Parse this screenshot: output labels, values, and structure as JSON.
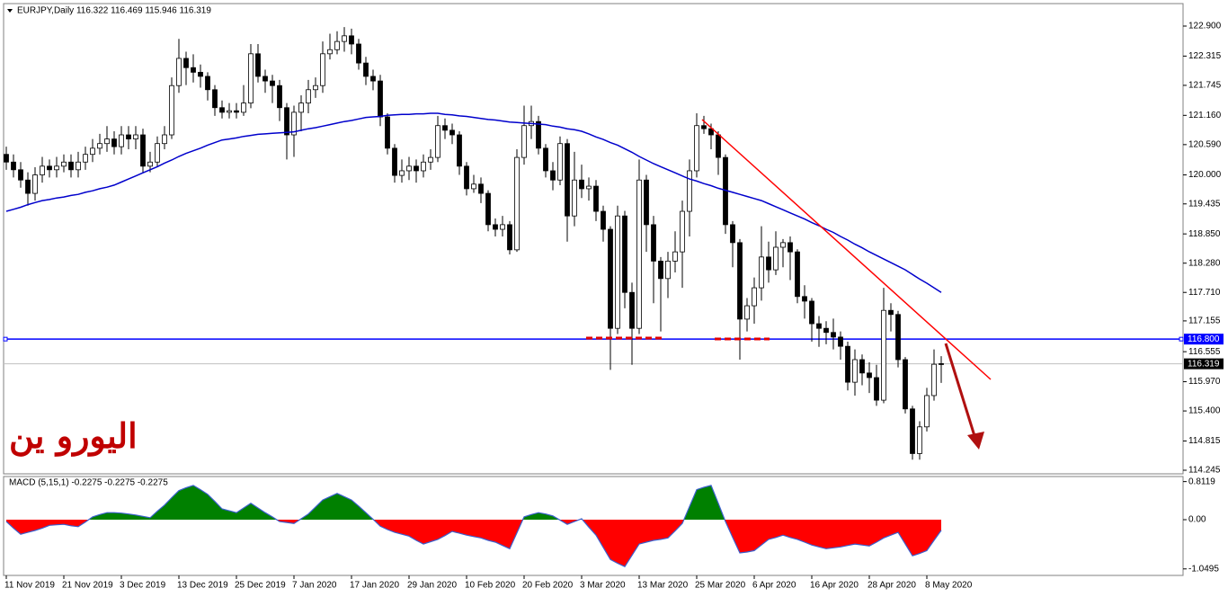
{
  "chart_data": [
    {
      "type": "candlestick",
      "header": "EURJPY,Daily  116.322 116.469 115.946 116.319",
      "annotation": "اليورو ين",
      "categories": [
        "11 Nov 2019",
        null,
        null,
        null,
        null,
        null,
        null,
        null,
        "21 Nov 2019",
        null,
        null,
        null,
        null,
        null,
        null,
        null,
        "3 Dec 2019",
        null,
        null,
        null,
        null,
        null,
        null,
        null,
        "13 Dec 2019",
        null,
        null,
        null,
        null,
        null,
        null,
        null,
        "25 Dec 2019",
        null,
        null,
        null,
        null,
        null,
        null,
        null,
        "7 Jan 2020",
        null,
        null,
        null,
        null,
        null,
        null,
        null,
        "17 Jan 2020",
        null,
        null,
        null,
        null,
        null,
        null,
        null,
        "29 Jan 2020",
        null,
        null,
        null,
        null,
        null,
        null,
        null,
        "10 Feb 2020",
        null,
        null,
        null,
        null,
        null,
        null,
        null,
        "20 Feb 2020",
        null,
        null,
        null,
        null,
        null,
        null,
        null,
        "3 Mar 2020",
        null,
        null,
        null,
        null,
        null,
        null,
        null,
        "13 Mar 2020",
        null,
        null,
        null,
        null,
        null,
        null,
        null,
        "25 Mar 2020",
        null,
        null,
        null,
        null,
        null,
        null,
        null,
        "6 Apr 2020",
        null,
        null,
        null,
        null,
        null,
        null,
        null,
        "16 Apr 2020",
        null,
        null,
        null,
        null,
        null,
        null,
        null,
        "28 Apr 2020",
        null,
        null,
        null,
        null,
        null,
        null,
        null,
        "8 May 2020",
        null,
        null
      ],
      "open": [
        120.4,
        120.25,
        120.1,
        119.9,
        119.64,
        120.0,
        120.17,
        120.1,
        120.17,
        120.25,
        120.1,
        120.25,
        120.4,
        120.52,
        120.61,
        120.7,
        120.55,
        120.78,
        120.7,
        120.78,
        120.17,
        120.25,
        120.61,
        120.78,
        121.74,
        122.27,
        122.09,
        122.0,
        121.92,
        121.66,
        121.31,
        121.22,
        121.25,
        121.22,
        121.4,
        122.36,
        121.92,
        121.83,
        121.74,
        121.31,
        120.78,
        121.22,
        121.4,
        121.66,
        121.74,
        122.36,
        122.44,
        122.6,
        122.71,
        122.55,
        122.18,
        121.92,
        121.83,
        121.13,
        120.52,
        119.99,
        120.08,
        120.17,
        120.08,
        120.25,
        120.34,
        120.96,
        120.87,
        120.78,
        120.17,
        119.73,
        119.82,
        119.64,
        119.03,
        118.94,
        119.03,
        118.54,
        120.34,
        120.96,
        121.04,
        120.52,
        120.08,
        119.9,
        120.61,
        119.2,
        119.9,
        119.73,
        119.78,
        119.29,
        118.94,
        117.01,
        119.2,
        117.71,
        117.01,
        119.9,
        119.03,
        118.32,
        117.98,
        118.32,
        118.5,
        119.29,
        120.08,
        120.96,
        120.9,
        120.78,
        120.34,
        119.03,
        118.68,
        117.19,
        117.45,
        117.8,
        118.4,
        118.15,
        118.59,
        118.68,
        118.5,
        117.63,
        117.54,
        117.1,
        117.01,
        116.93,
        116.84,
        116.66,
        115.96,
        116.4,
        116.14,
        116.05,
        115.61,
        117.36,
        117.28,
        116.4,
        115.44,
        114.57,
        115.09,
        115.7,
        116.322
      ],
      "high": [
        120.55,
        120.4,
        120.25,
        120.05,
        120.15,
        120.35,
        120.3,
        120.35,
        120.4,
        120.4,
        120.45,
        120.55,
        120.7,
        120.8,
        120.95,
        120.85,
        120.95,
        120.95,
        120.95,
        120.9,
        120.45,
        120.75,
        120.95,
        121.9,
        122.65,
        122.4,
        122.35,
        122.15,
        122.0,
        121.75,
        121.45,
        121.4,
        121.4,
        121.75,
        122.55,
        122.55,
        122.05,
        121.95,
        121.85,
        121.4,
        121.35,
        121.55,
        121.85,
        121.9,
        122.6,
        122.75,
        122.8,
        122.88,
        122.85,
        122.65,
        122.3,
        122.05,
        121.95,
        121.2,
        120.6,
        120.3,
        120.35,
        120.3,
        120.4,
        120.5,
        121.15,
        121.1,
        121.0,
        120.85,
        120.25,
        120.0,
        119.95,
        119.7,
        119.15,
        119.2,
        119.1,
        120.5,
        121.35,
        121.35,
        121.15,
        120.6,
        120.25,
        120.75,
        120.7,
        120.45,
        120.2,
        119.95,
        119.9,
        119.4,
        119.0,
        119.4,
        119.3,
        117.9,
        120.3,
        120.0,
        119.2,
        118.4,
        118.5,
        118.9,
        119.5,
        120.3,
        121.2,
        121.15,
        121.0,
        120.85,
        120.4,
        119.1,
        118.75,
        117.6,
        118.0,
        119.0,
        118.7,
        118.9,
        118.75,
        118.8,
        118.55,
        117.85,
        117.6,
        117.25,
        117.15,
        117.2,
        116.95,
        116.75,
        116.6,
        116.5,
        116.35,
        116.3,
        117.8,
        117.5,
        117.35,
        116.45,
        115.5,
        115.2,
        115.85,
        116.6,
        116.469
      ],
      "low": [
        120.1,
        119.95,
        119.75,
        119.4,
        119.5,
        119.85,
        119.95,
        119.95,
        120.05,
        119.95,
        119.95,
        120.1,
        120.25,
        120.4,
        120.45,
        120.4,
        120.4,
        120.5,
        120.5,
        120.05,
        120.05,
        120.15,
        120.5,
        120.7,
        121.6,
        121.75,
        121.8,
        121.7,
        121.45,
        121.15,
        121.1,
        121.1,
        121.1,
        121.15,
        121.3,
        121.8,
        121.6,
        121.4,
        121.05,
        120.3,
        120.35,
        120.85,
        121.2,
        121.5,
        121.6,
        122.25,
        122.35,
        122.4,
        122.35,
        122.05,
        121.75,
        121.65,
        120.95,
        120.4,
        119.85,
        119.85,
        119.9,
        119.85,
        119.95,
        120.1,
        120.25,
        120.7,
        120.6,
        120.0,
        119.6,
        119.65,
        119.45,
        118.9,
        118.8,
        118.8,
        118.45,
        118.5,
        120.2,
        120.7,
        120.4,
        119.95,
        119.7,
        119.8,
        118.7,
        119.0,
        119.55,
        119.5,
        119.1,
        118.7,
        116.2,
        116.9,
        117.4,
        116.3,
        116.9,
        118.5,
        117.5,
        116.95,
        117.6,
        118.1,
        117.8,
        118.8,
        119.95,
        120.8,
        120.5,
        120.0,
        118.85,
        118.2,
        116.4,
        116.95,
        117.1,
        117.55,
        117.9,
        118.05,
        118.2,
        117.95,
        117.5,
        117.2,
        116.75,
        116.65,
        116.7,
        116.6,
        116.4,
        115.8,
        115.7,
        115.9,
        115.75,
        115.5,
        115.55,
        116.95,
        116.25,
        115.35,
        114.45,
        114.45,
        115.0,
        115.6,
        115.946
      ],
      "close": [
        120.25,
        120.1,
        119.9,
        119.64,
        120.0,
        120.17,
        120.1,
        120.17,
        120.25,
        120.1,
        120.25,
        120.4,
        120.52,
        120.61,
        120.7,
        120.55,
        120.78,
        120.7,
        120.78,
        120.17,
        120.25,
        120.61,
        120.78,
        121.74,
        122.27,
        122.09,
        122.0,
        121.92,
        121.66,
        121.31,
        121.22,
        121.25,
        121.22,
        121.4,
        122.36,
        121.92,
        121.83,
        121.74,
        121.31,
        120.78,
        121.22,
        121.4,
        121.66,
        121.74,
        122.36,
        122.44,
        122.6,
        122.71,
        122.55,
        122.18,
        121.92,
        121.83,
        121.13,
        120.52,
        119.99,
        120.08,
        120.17,
        120.08,
        120.25,
        120.34,
        120.96,
        120.87,
        120.78,
        120.17,
        119.73,
        119.82,
        119.64,
        119.03,
        118.94,
        119.03,
        118.54,
        120.34,
        120.96,
        121.04,
        120.52,
        120.08,
        119.9,
        120.61,
        119.2,
        119.9,
        119.73,
        119.78,
        119.29,
        118.94,
        117.01,
        119.2,
        117.71,
        117.01,
        119.9,
        119.03,
        118.32,
        117.98,
        118.32,
        118.5,
        119.29,
        120.08,
        120.96,
        120.9,
        120.78,
        120.34,
        119.03,
        118.68,
        117.19,
        117.45,
        117.8,
        118.4,
        118.15,
        118.59,
        118.68,
        118.5,
        117.63,
        117.54,
        117.1,
        117.01,
        116.93,
        116.84,
        116.66,
        115.96,
        116.4,
        116.14,
        116.05,
        115.61,
        117.36,
        117.28,
        116.4,
        115.44,
        114.57,
        115.09,
        115.7,
        116.31,
        116.319
      ],
      "ma_color": "#0000cc",
      "ma_values": [
        119.29,
        119.33,
        119.37,
        119.42,
        119.46,
        119.5,
        119.52,
        119.55,
        119.57,
        119.6,
        119.62,
        119.66,
        119.69,
        119.73,
        119.76,
        119.8,
        119.86,
        119.92,
        119.98,
        120.04,
        120.1,
        120.16,
        120.23,
        120.29,
        120.36,
        120.42,
        120.47,
        120.52,
        120.58,
        120.63,
        120.68,
        120.7,
        120.72,
        120.75,
        120.77,
        120.79,
        120.8,
        120.81,
        120.82,
        120.83,
        120.84,
        120.87,
        120.9,
        120.92,
        120.95,
        120.98,
        121.01,
        121.04,
        121.06,
        121.09,
        121.12,
        121.13,
        121.14,
        121.16,
        121.17,
        121.18,
        121.18,
        121.19,
        121.19,
        121.2,
        121.2,
        121.18,
        121.17,
        121.15,
        121.14,
        121.12,
        121.1,
        121.08,
        121.07,
        121.05,
        121.03,
        121.02,
        121.01,
        121.0,
        120.99,
        120.98,
        120.95,
        120.93,
        120.9,
        120.88,
        120.85,
        120.8,
        120.74,
        120.69,
        120.63,
        120.58,
        120.51,
        120.44,
        120.36,
        120.29,
        120.22,
        120.16,
        120.1,
        120.04,
        119.98,
        119.92,
        119.88,
        119.83,
        119.79,
        119.74,
        119.7,
        119.66,
        119.62,
        119.58,
        119.54,
        119.5,
        119.44,
        119.38,
        119.32,
        119.26,
        119.2,
        119.14,
        119.07,
        119.01,
        118.94,
        118.88,
        118.8,
        118.73,
        118.65,
        118.58,
        118.5,
        118.43,
        118.36,
        118.29,
        118.22,
        118.15,
        118.06,
        117.97,
        117.89,
        117.8,
        117.71
      ],
      "hline": {
        "value": 116.8,
        "label": "116.800"
      },
      "hline_color": "#0000ff",
      "last_price": 116.319,
      "ylim": [
        114.175,
        123.338
      ],
      "yticks": [
        {
          "value": 122.9,
          "label": "122.900"
        },
        {
          "value": 122.315,
          "label": "122.315"
        },
        {
          "value": 121.745,
          "label": "121.745"
        },
        {
          "value": 121.16,
          "label": "121.160"
        },
        {
          "value": 120.59,
          "label": "120.590"
        },
        {
          "value": 120.0,
          "label": "120.000"
        },
        {
          "value": 119.435,
          "label": "119.435"
        },
        {
          "value": 118.85,
          "label": "118.850"
        },
        {
          "value": 118.28,
          "label": "118.280"
        },
        {
          "value": 117.71,
          "label": "117.710"
        },
        {
          "value": 117.155,
          "label": "117.155"
        },
        {
          "value": 116.555,
          "label": "116.555"
        },
        {
          "value": 115.97,
          "label": "115.970"
        },
        {
          "value": 115.4,
          "label": "115.400"
        },
        {
          "value": 114.815,
          "label": "114.815"
        },
        {
          "value": 114.245,
          "label": "114.245"
        }
      ]
    },
    {
      "type": "macd",
      "title": "MACD (5,15,1) -0.2275 -0.2275 -0.2275",
      "pos_color": "#008000",
      "neg_color": "#ff0000",
      "line_color": "#3a5fcd",
      "values": [
        -0.04,
        -0.18,
        -0.31,
        -0.27,
        -0.23,
        -0.18,
        -0.12,
        -0.11,
        -0.1,
        -0.13,
        -0.15,
        -0.05,
        0.06,
        0.11,
        0.15,
        0.15,
        0.14,
        0.12,
        0.1,
        0.07,
        0.04,
        0.18,
        0.31,
        0.47,
        0.62,
        0.68,
        0.73,
        0.64,
        0.54,
        0.39,
        0.23,
        0.19,
        0.15,
        0.25,
        0.35,
        0.25,
        0.15,
        0.06,
        -0.04,
        -0.06,
        -0.08,
        0.02,
        0.12,
        0.27,
        0.42,
        0.49,
        0.56,
        0.49,
        0.42,
        0.29,
        0.15,
        0.01,
        -0.14,
        -0.21,
        -0.27,
        -0.31,
        -0.35,
        -0.44,
        -0.52,
        -0.47,
        -0.42,
        -0.34,
        -0.25,
        -0.29,
        -0.33,
        -0.36,
        -0.39,
        -0.44,
        -0.48,
        -0.55,
        -0.62,
        -0.28,
        0.06,
        0.11,
        0.15,
        0.12,
        0.08,
        -0.01,
        -0.1,
        -0.04,
        0.02,
        -0.16,
        -0.33,
        -0.59,
        -0.85,
        -0.93,
        -1.0,
        -0.76,
        -0.52,
        -0.48,
        -0.44,
        -0.42,
        -0.39,
        -0.24,
        -0.08,
        0.28,
        0.64,
        0.69,
        0.73,
        0.35,
        -0.04,
        -0.38,
        -0.71,
        -0.69,
        -0.66,
        -0.54,
        -0.42,
        -0.38,
        -0.33,
        -0.38,
        -0.42,
        -0.48,
        -0.54,
        -0.58,
        -0.62,
        -0.6,
        -0.58,
        -0.55,
        -0.52,
        -0.54,
        -0.56,
        -0.48,
        -0.39,
        -0.33,
        -0.27,
        -0.52,
        -0.77,
        -0.72,
        -0.66,
        -0.44,
        -0.2275
      ],
      "ylim": [
        -1.15,
        0.92
      ],
      "yticks": [
        0.8119,
        {
          "value": 0,
          "label": "0.00"
        },
        -1.0495
      ]
    }
  ]
}
